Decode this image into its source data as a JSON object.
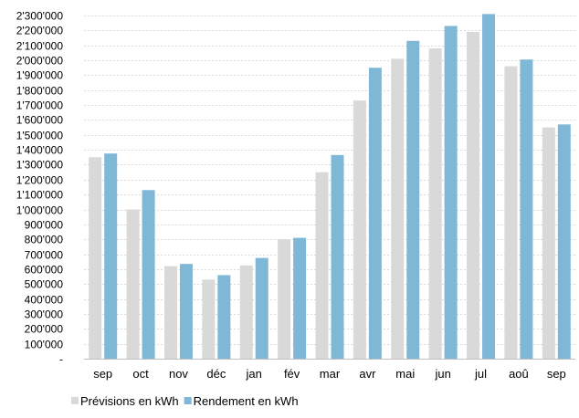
{
  "chart_data": {
    "type": "bar",
    "title": "",
    "xlabel": "",
    "ylabel": "",
    "categories": [
      "sep",
      "oct",
      "nov",
      "déc",
      "jan",
      "fév",
      "mar",
      "avr",
      "mai",
      "jun",
      "jul",
      "aoû",
      "sep"
    ],
    "series": [
      {
        "name": "Prévisions en kWh",
        "color": "#d9d9d9",
        "values": [
          1350000,
          1000000,
          620000,
          530000,
          625000,
          800000,
          1250000,
          1730000,
          2010000,
          2080000,
          2190000,
          1960000,
          1550000
        ]
      },
      {
        "name": "Rendement en kWh",
        "color": "#7fb8d6",
        "values": [
          1375000,
          1130000,
          635000,
          560000,
          675000,
          810000,
          1365000,
          1950000,
          2130000,
          2230000,
          2310000,
          2005000,
          1570000
        ]
      }
    ],
    "ylim": [
      0,
      2300000
    ],
    "ytick_step": 100000,
    "ytick_labels": [
      "-",
      "100'000",
      "200'000",
      "300'000",
      "400'000",
      "500'000",
      "600'000",
      "700'000",
      "800'000",
      "900'000",
      "1'000'000",
      "1'100'000",
      "1'200'000",
      "1'300'000",
      "1'400'000",
      "1'500'000",
      "1'600'000",
      "1'700'000",
      "1'800'000",
      "1'900'000",
      "2'000'000",
      "2'100'000",
      "2'200'000",
      "2'300'000"
    ],
    "grid": true,
    "gridline_color": "#d9d9d9",
    "axis_color": "#bfbfbf",
    "legend_position": "bottom-left"
  }
}
